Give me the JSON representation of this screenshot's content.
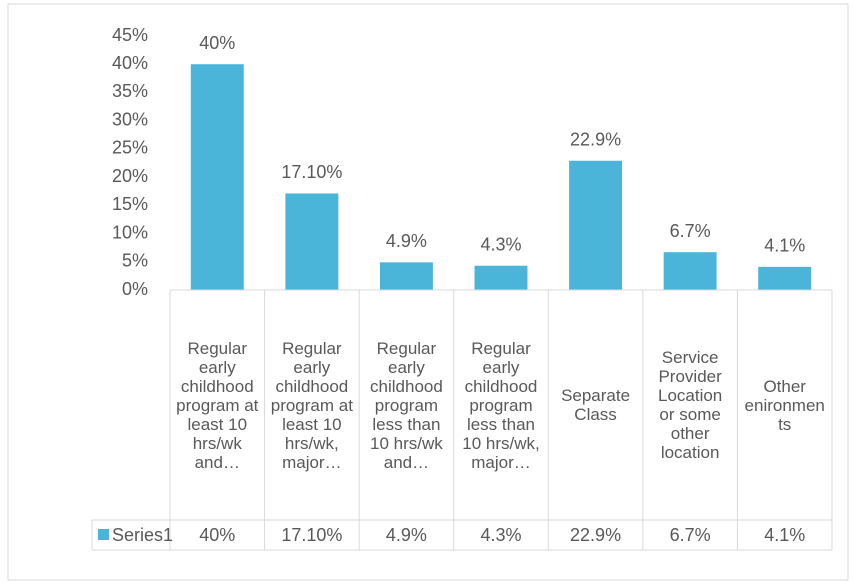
{
  "chart_data": {
    "type": "bar",
    "categories": [
      "Regular early childhood program at least 10 hrs/wk and…",
      "Regular early childhood program at least 10 hrs/wk, major…",
      "Regular early childhood program less than 10 hrs/wk and…",
      "Regular early childhood program less than 10 hrs/wk, major…",
      "Separate Class",
      "Service Provider Location or some other location",
      "Other enironments"
    ],
    "series": [
      {
        "name": "Series1",
        "color": "#4bb5d9",
        "values": [
          40,
          17.1,
          4.9,
          4.3,
          22.9,
          6.7,
          4.1
        ],
        "value_labels": [
          "40%",
          "17.10%",
          "4.9%",
          "4.3%",
          "22.9%",
          "6.7%",
          "4.1%"
        ]
      }
    ],
    "ylim": [
      0,
      45
    ],
    "yticks": [
      {
        "value": 0,
        "label": "0%"
      },
      {
        "value": 5,
        "label": "5%"
      },
      {
        "value": 10,
        "label": "10%"
      },
      {
        "value": 15,
        "label": "15%"
      },
      {
        "value": 20,
        "label": "20%"
      },
      {
        "value": 25,
        "label": "25%"
      },
      {
        "value": 30,
        "label": "30%"
      },
      {
        "value": 35,
        "label": "35%"
      },
      {
        "value": 40,
        "label": "40%"
      },
      {
        "value": 45,
        "label": "45%"
      }
    ],
    "data_table": true
  }
}
